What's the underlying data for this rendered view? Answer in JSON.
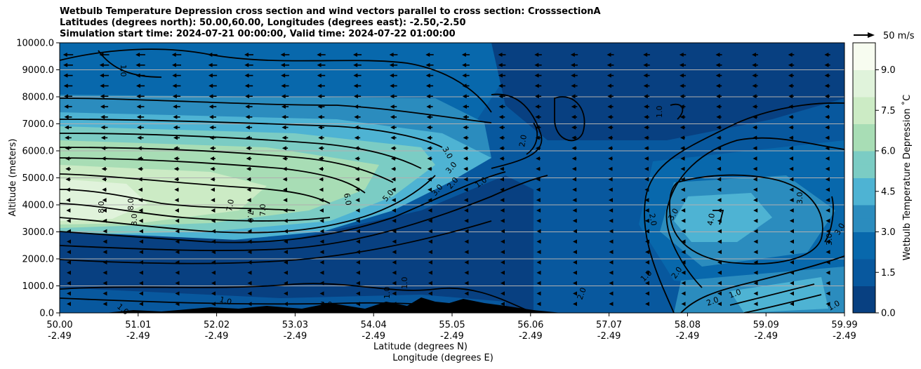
{
  "titles": {
    "line1": "Wetbulb Temperature Depression cross section and wind vectors parallel to cross section: CrosssectionA",
    "line2": "Latitudes (degrees north): 50.00,60.00, Longitudes (degrees east): -2.50,-2.50",
    "line3": "Simulation start time: 2024-07-21 00:00:00, Valid time: 2024-07-22 01:00:00"
  },
  "chart_data": {
    "type": "heatmap",
    "title": "Wetbulb Temperature Depression cross section and wind vectors parallel to cross section: CrosssectionA",
    "ylabel": "Altitude (meters)",
    "xlabel_lat": "Latitude (degrees N)",
    "xlabel_lon": "Longitude (degrees E)",
    "ylim": [
      0,
      10000
    ],
    "xlim": [
      50.0,
      59.99
    ],
    "y_ticks": [
      "0.0",
      "1000.0",
      "2000.0",
      "3000.0",
      "4000.0",
      "5000.0",
      "6000.0",
      "7000.0",
      "8000.0",
      "9000.0",
      "10000.0"
    ],
    "x_ticks": [
      {
        "lat": "50.00",
        "lon": "-2.49"
      },
      {
        "lat": "51.01",
        "lon": "-2.49"
      },
      {
        "lat": "52.02",
        "lon": "-2.49"
      },
      {
        "lat": "53.03",
        "lon": "-2.49"
      },
      {
        "lat": "54.04",
        "lon": "-2.49"
      },
      {
        "lat": "55.05",
        "lon": "-2.49"
      },
      {
        "lat": "56.06",
        "lon": "-2.49"
      },
      {
        "lat": "57.07",
        "lon": "-2.49"
      },
      {
        "lat": "58.08",
        "lon": "-2.49"
      },
      {
        "lat": "59.09",
        "lon": "-2.49"
      },
      {
        "lat": "59.99",
        "lon": "-2.49"
      }
    ],
    "colorbar": {
      "label": "Wetbulb Temperature Depression ˚C",
      "min": 0.0,
      "max": 10.0,
      "ticks": [
        "0.0",
        "1.5",
        "3.0",
        "4.5",
        "6.0",
        "7.5",
        "9.0"
      ],
      "colors": [
        "#084081",
        "#08589e",
        "#0868ac",
        "#2b8cbe",
        "#4eb3d3",
        "#7bccc4",
        "#a8ddb5",
        "#ccebc5",
        "#e0f3db",
        "#f7fcf0"
      ]
    },
    "contour_labels": [
      "1.0",
      "2.0",
      "3.0",
      "4.0",
      "5.0",
      "6.0",
      "7.0",
      "8.0"
    ],
    "wind_reference": {
      "label": "50 m/s",
      "speed": 50
    },
    "grid": "horizontal",
    "terrain": "black"
  }
}
